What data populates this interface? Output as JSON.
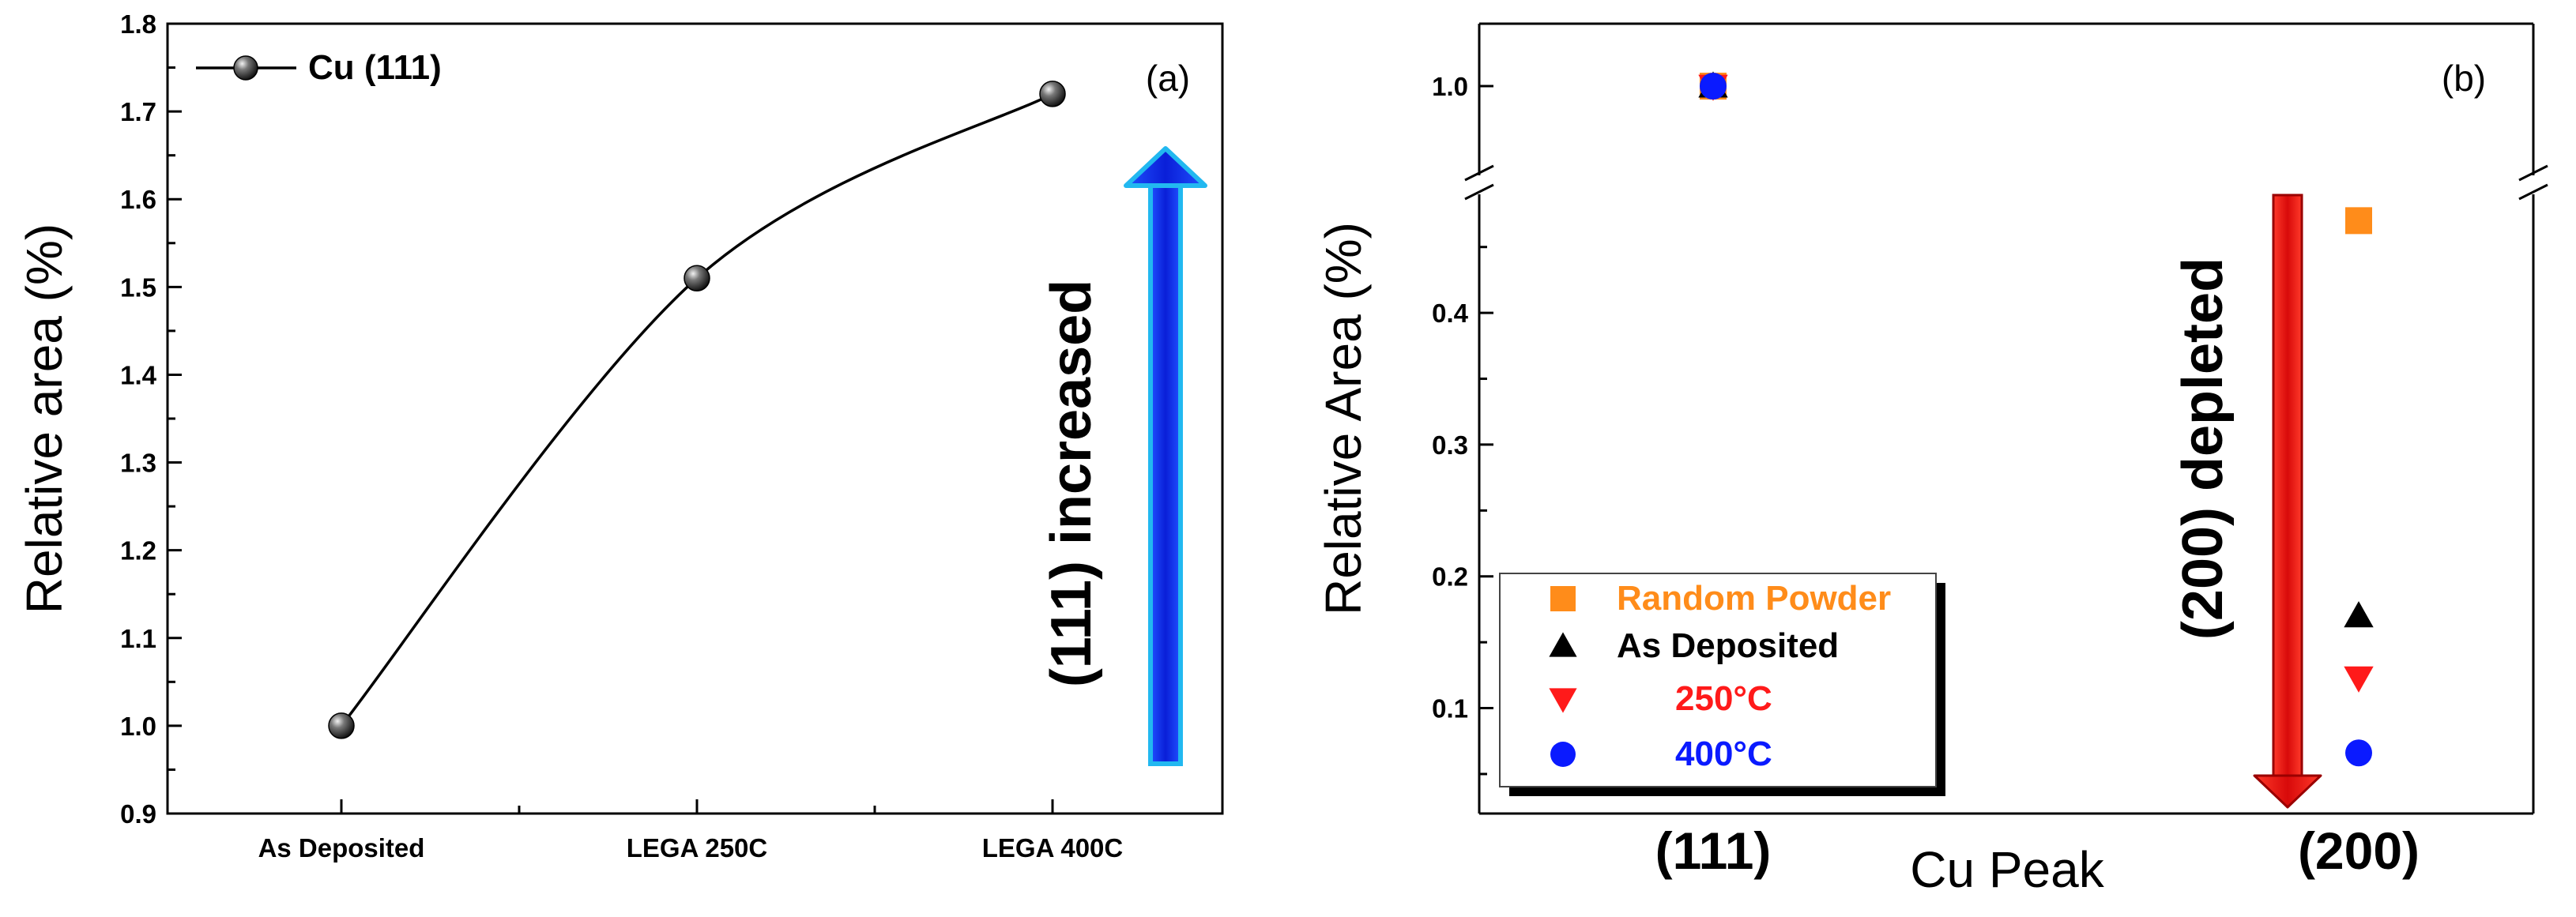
{
  "chart_data": [
    {
      "panel": "(a)",
      "type": "line",
      "categories": [
        "As Deposited",
        "LEGA 250C",
        "LEGA 400C"
      ],
      "series": [
        {
          "name": "Cu (111)",
          "values": [
            1.0,
            1.51,
            1.72
          ]
        }
      ],
      "ylabel": "Relative area (%)",
      "ylim": [
        0.9,
        1.8
      ],
      "yticks": [
        "0.9",
        "1.0",
        "1.1",
        "1.2",
        "1.3",
        "1.4",
        "1.5",
        "1.6",
        "1.7",
        "1.8"
      ],
      "grid": false,
      "legend_position": "top-left",
      "annotation": "(111) increased",
      "arrow_color": "#1a3cf0"
    },
    {
      "panel": "(b)",
      "type": "scatter",
      "categories": [
        "(111)",
        "(200)"
      ],
      "xlabel": "Cu Peak",
      "ylabel": "Relative Area (%)",
      "ylim_lower": [
        0.02,
        0.49
      ],
      "ylim_upper": [
        0.9,
        1.07
      ],
      "yticks": [
        "0.1",
        "0.2",
        "0.3",
        "0.4",
        "1.0"
      ],
      "axis_break": true,
      "grid": false,
      "legend_position": "bottom-left",
      "series": [
        {
          "name": "Random Powder",
          "color": "#ff8c1a",
          "marker": "square",
          "values": [
            1.0,
            0.47
          ]
        },
        {
          "name": "As Deposited",
          "color": "#000000",
          "marker": "triangle-up",
          "values": [
            1.0,
            0.17
          ]
        },
        {
          "name": "250°C",
          "color": "#ff1a1a",
          "marker": "triangle-down",
          "values": [
            1.0,
            0.123
          ]
        },
        {
          "name": "400°C",
          "color": "#0a1aff",
          "marker": "circle",
          "values": [
            1.0,
            0.066
          ]
        }
      ],
      "annotation": "(200) depleted",
      "arrow_color": "#e81010"
    }
  ]
}
